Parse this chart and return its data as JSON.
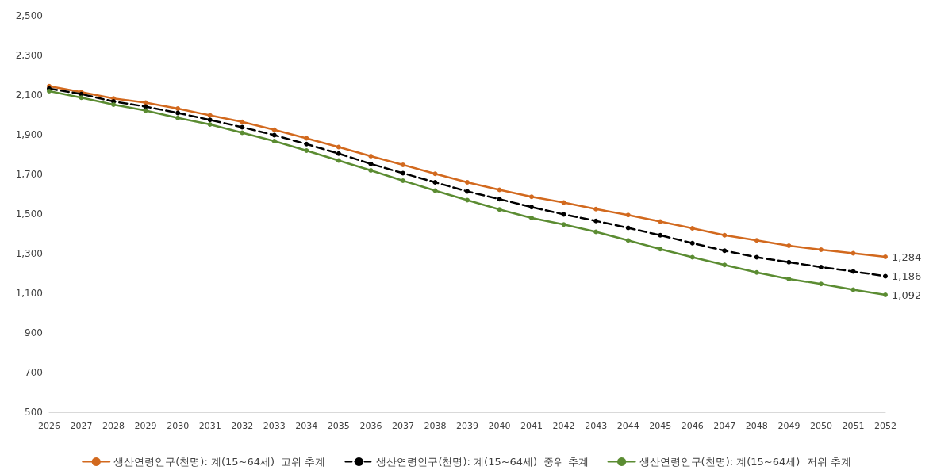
{
  "chart_data": {
    "type": "line",
    "categories": [
      "2026",
      "2027",
      "2028",
      "2029",
      "2030",
      "2031",
      "2032",
      "2033",
      "2034",
      "2035",
      "2036",
      "2037",
      "2038",
      "2039",
      "2040",
      "2041",
      "2042",
      "2043",
      "2044",
      "2045",
      "2046",
      "2047",
      "2048",
      "2049",
      "2050",
      "2051",
      "2052"
    ],
    "ylim": [
      500,
      2500
    ],
    "yticks": [
      {
        "value": 500,
        "label": "500"
      },
      {
        "value": 700,
        "label": "700"
      },
      {
        "value": 900,
        "label": "900"
      },
      {
        "value": 1100,
        "label": "1,100"
      },
      {
        "value": 1300,
        "label": "1,300"
      },
      {
        "value": 1500,
        "label": "1,500"
      },
      {
        "value": 1700,
        "label": "1,700"
      },
      {
        "value": 1900,
        "label": "1,900"
      },
      {
        "value": 2100,
        "label": "2,100"
      },
      {
        "value": 2300,
        "label": "2,300"
      },
      {
        "value": 2500,
        "label": "2,500"
      }
    ],
    "grid": false,
    "legend": "bottom",
    "marker": "circle",
    "series": [
      {
        "name": "생산연령인구(천명): 계(15~64세)  고위 추계",
        "color": "#d2691e",
        "line_style": "solid",
        "values": [
          2145,
          2115,
          2083,
          2062,
          2032,
          1998,
          1965,
          1925,
          1882,
          1838,
          1792,
          1748,
          1703,
          1660,
          1622,
          1587,
          1558,
          1525,
          1495,
          1462,
          1428,
          1393,
          1367,
          1340,
          1320,
          1302,
          1284
        ],
        "value_labels": [
          null,
          null,
          null,
          null,
          null,
          null,
          null,
          null,
          null,
          null,
          null,
          null,
          null,
          null,
          null,
          null,
          null,
          null,
          null,
          null,
          null,
          null,
          null,
          null,
          null,
          null,
          "1,284"
        ]
      },
      {
        "name": "생산연령인구(천명): 계(15~64세)  중위 추계",
        "color": "#000000",
        "line_style": "dashed",
        "values": [
          2133,
          2105,
          2068,
          2042,
          2010,
          1975,
          1938,
          1898,
          1853,
          1805,
          1753,
          1706,
          1660,
          1614,
          1575,
          1535,
          1498,
          1465,
          1430,
          1393,
          1353,
          1315,
          1282,
          1257,
          1232,
          1210,
          1186
        ],
        "value_labels": [
          null,
          null,
          null,
          null,
          null,
          null,
          null,
          null,
          null,
          null,
          null,
          null,
          null,
          null,
          null,
          null,
          null,
          null,
          null,
          null,
          null,
          null,
          null,
          null,
          null,
          null,
          "1,186"
        ]
      },
      {
        "name": "생산연령인구(천명): 계(15~64세)  저위 추계",
        "color": "#5b8c32",
        "line_style": "solid",
        "values": [
          2120,
          2087,
          2052,
          2022,
          1985,
          1952,
          1910,
          1868,
          1820,
          1770,
          1720,
          1668,
          1618,
          1570,
          1523,
          1480,
          1447,
          1410,
          1367,
          1323,
          1282,
          1243,
          1205,
          1172,
          1147,
          1118,
          1092
        ],
        "value_labels": [
          null,
          null,
          null,
          null,
          null,
          null,
          null,
          null,
          null,
          null,
          null,
          null,
          null,
          null,
          null,
          null,
          null,
          null,
          null,
          null,
          null,
          null,
          null,
          null,
          null,
          null,
          "1,092"
        ]
      }
    ]
  }
}
